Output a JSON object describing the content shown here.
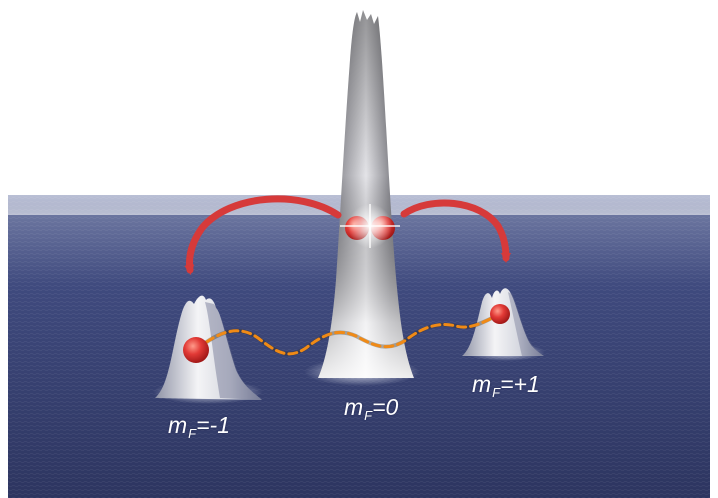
{
  "colors": {
    "sky": "#ffffff",
    "surface_far": "#9aa3c2",
    "surface_near": "#3a4374",
    "peak": "#e8e8e8",
    "arrow": "#d63a3a",
    "atom": "#e03434",
    "wave": "#f08a16"
  },
  "labels": {
    "minus": {
      "symbol": "m",
      "sub": "F",
      "value": "=-1"
    },
    "zero": {
      "symbol": "m",
      "sub": "F",
      "value": "=0"
    },
    "plus": {
      "symbol": "m",
      "sub": "F",
      "value": "=+1"
    }
  }
}
